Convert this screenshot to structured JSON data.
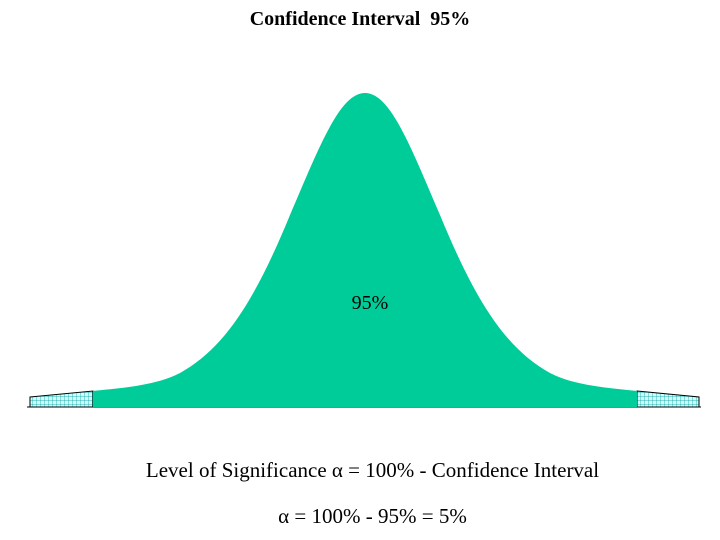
{
  "title": "Confidence Interval  95%",
  "diagram": {
    "center_label": "95%",
    "colors": {
      "body_fill": "#00CC99",
      "tail_fill": "#CCFFFF",
      "tail_grid": "#009999",
      "outline": "#000000"
    }
  },
  "caption_line_1": "Level of Significance α = 100% - Confidence Interval",
  "caption_line_2": "α = 100% - 95% = 5%"
}
